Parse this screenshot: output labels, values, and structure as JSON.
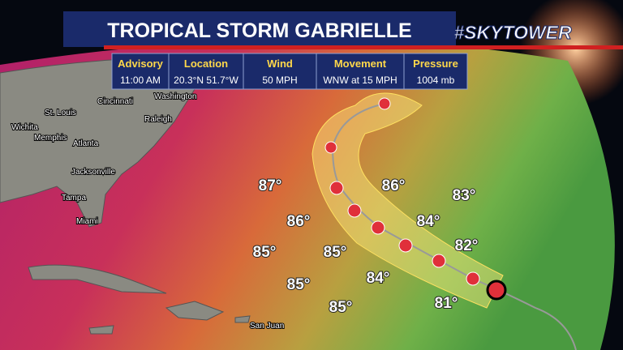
{
  "header": {
    "title": "TROPICAL STORM GABRIELLE",
    "logo": "#SKYTOWER"
  },
  "info": [
    {
      "label": "Advisory",
      "value": "11:00 AM"
    },
    {
      "label": "Location",
      "value": "20.3°N  51.7°W"
    },
    {
      "label": "Wind",
      "value": "50 MPH"
    },
    {
      "label": "Movement",
      "value": "WNW at 15 MPH"
    },
    {
      "label": "Pressure",
      "value": "1004 mb"
    }
  ],
  "cities": [
    "Cincinnati",
    "Washington",
    "St. Louis",
    "Raleigh",
    "Memphis",
    "Atlanta",
    "Wichita",
    "Jacksonville",
    "Tampa",
    "Miami",
    "San Juan"
  ],
  "temperatures": [
    "87°",
    "86°",
    "83°",
    "86°",
    "84°",
    "82°",
    "85°",
    "85°",
    "85°",
    "84°",
    "81°",
    "85°"
  ]
}
